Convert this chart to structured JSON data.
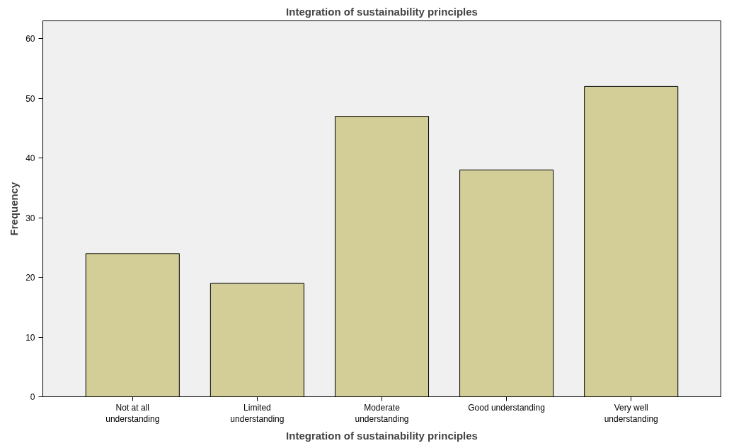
{
  "chart_data": {
    "type": "bar",
    "title": "Integration of sustainability principles",
    "xlabel": "Integration of sustainability principles",
    "ylabel": "Frequency",
    "categories": [
      "Not at all understanding",
      "Limited understanding",
      "Moderate understanding",
      "Good understanding",
      "Very well understanding"
    ],
    "values": [
      24,
      19,
      47,
      38,
      52
    ],
    "color": "#d3ce97",
    "ylim": [
      0,
      63
    ],
    "yticks": [
      0,
      10,
      20,
      30,
      40,
      50,
      60
    ],
    "grid": false
  }
}
